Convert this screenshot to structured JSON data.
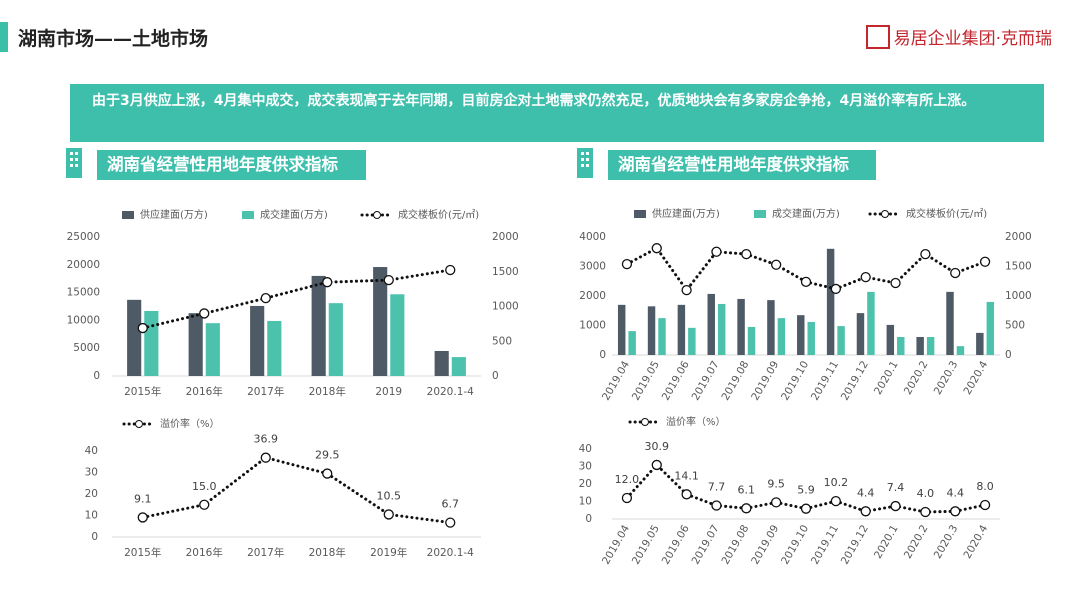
{
  "header": {
    "title": "湖南市场——土地市场",
    "logo": "易居企业集团·克而瑞"
  },
  "banner": "由于3月供应上涨，4月集中成交，成交表现高于去年同期，目前房企对土地需求仍然充足，优质地块会有多家房企争抢，4月溢价率有所上涨。",
  "panels": [
    {
      "title": "湖南省经营性用地年度供求指标"
    },
    {
      "title": "湖南省经营性用地年度供求指标"
    }
  ],
  "chart_data": [
    {
      "type": "combo",
      "categories": [
        "2015年",
        "2016年",
        "2017年",
        "2018年",
        "2019",
        "2020.1-4"
      ],
      "ylim": [
        0,
        25000
      ],
      "yticks": [
        0,
        5000,
        10000,
        15000,
        20000,
        25000
      ],
      "y2lim": [
        0,
        2000
      ],
      "y2ticks": [
        0,
        500,
        1000,
        1500,
        2000
      ],
      "series": [
        {
          "name": "供应建面(万方)",
          "type": "bar",
          "color": "#4e5a66",
          "values": [
            13700,
            11300,
            12600,
            18000,
            19600,
            4500
          ]
        },
        {
          "name": "成交建面(万方)",
          "type": "bar",
          "color": "#4cc2ad",
          "values": [
            11700,
            9500,
            9900,
            13100,
            14700,
            3400
          ]
        },
        {
          "name": "成交楼板价(元/㎡)",
          "type": "line",
          "axis": "y2",
          "color": "#111111",
          "values": [
            690,
            900,
            1120,
            1350,
            1380,
            1525
          ]
        }
      ]
    },
    {
      "type": "line",
      "categories": [
        "2015年",
        "2016年",
        "2017年",
        "2018年",
        "2019年",
        "2020.1-4"
      ],
      "ylim": [
        0,
        40
      ],
      "yticks": [
        0,
        10,
        20,
        30,
        40
      ],
      "series": [
        {
          "name": "溢价率（%）",
          "color": "#111111",
          "values": [
            9.1,
            15.0,
            36.9,
            29.5,
            10.5,
            6.7
          ],
          "value_labels": [
            "9.1",
            "15.0",
            "36.9",
            "29.5",
            "10.5",
            "6.7"
          ]
        }
      ]
    },
    {
      "type": "combo",
      "categories": [
        "2019.04",
        "2019.05",
        "2019.06",
        "2019.07",
        "2019.08",
        "2019.09",
        "2019.10",
        "2019.11",
        "2019.12",
        "2020.1",
        "2020.2",
        "2020.3",
        "2020.4"
      ],
      "ylim": [
        0,
        4000
      ],
      "yticks": [
        0,
        1000,
        2000,
        3000,
        4000
      ],
      "y2lim": [
        0,
        2000
      ],
      "y2ticks": [
        0,
        500,
        1000,
        1500,
        2000
      ],
      "series": [
        {
          "name": "供应建面(万方)",
          "type": "bar",
          "color": "#4e5a66",
          "values": [
            1700,
            1650,
            1700,
            2070,
            1900,
            1860,
            1350,
            3600,
            1420,
            1020,
            610,
            2140,
            750
          ]
        },
        {
          "name": "成交建面(万方)",
          "type": "bar",
          "color": "#4cc2ad",
          "values": [
            810,
            1250,
            920,
            1730,
            950,
            1250,
            1120,
            980,
            2140,
            610,
            610,
            300,
            1800
          ]
        },
        {
          "name": "成交楼板价(元/㎡)",
          "type": "line",
          "axis": "y2",
          "color": "#111111",
          "values": [
            1540,
            1810,
            1100,
            1750,
            1710,
            1530,
            1240,
            1120,
            1320,
            1220,
            1710,
            1390,
            1580
          ]
        }
      ]
    },
    {
      "type": "line",
      "categories": [
        "2019.04",
        "2019.05",
        "2019.06",
        "2019.07",
        "2019.08",
        "2019.09",
        "2019.10",
        "2019.11",
        "2019.12",
        "2020.1",
        "2020.2",
        "2020.3",
        "2020.4"
      ],
      "ylim": [
        0,
        40
      ],
      "yticks": [
        0,
        10,
        20,
        30,
        40
      ],
      "series": [
        {
          "name": "溢价率（%）",
          "color": "#111111",
          "values": [
            12.0,
            30.9,
            14.1,
            7.7,
            6.1,
            9.5,
            5.9,
            10.2,
            4.4,
            7.4,
            4.0,
            4.4,
            8.0
          ],
          "value_labels": [
            "12.0",
            "30.9",
            "14.1",
            "7.7",
            "6.1",
            "9.5",
            "5.9",
            "10.2",
            "4.4",
            "7.4",
            "4.0",
            "4.4",
            "8.0"
          ]
        }
      ]
    }
  ]
}
